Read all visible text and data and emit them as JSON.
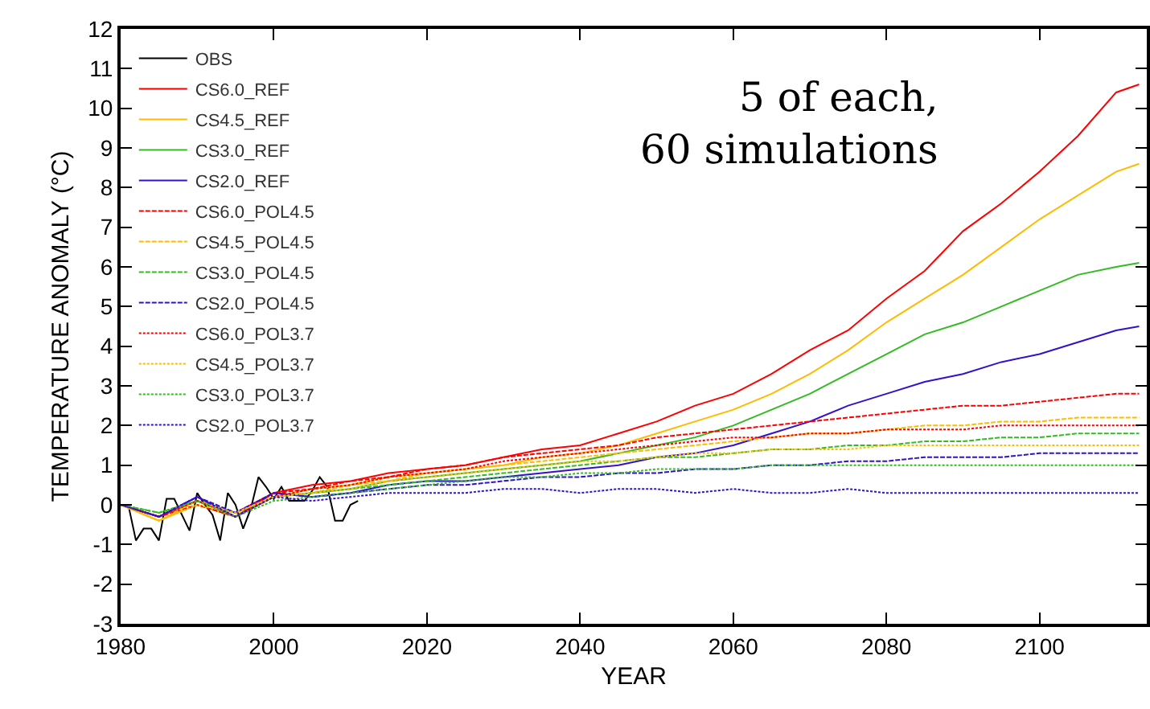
{
  "chart_data": {
    "type": "line",
    "xlabel": "YEAR",
    "ylabel": "TEMPERATURE ANOMALY (°C)",
    "xlim": [
      1980,
      2114
    ],
    "xticks": [
      1980,
      2000,
      2020,
      2040,
      2060,
      2080,
      2100
    ],
    "ylim": [
      -3,
      12
    ],
    "yticks": [
      -3,
      -2,
      -1,
      0,
      1,
      2,
      3,
      4,
      5,
      6,
      7,
      8,
      9,
      10,
      11,
      12
    ],
    "grid": false,
    "legend": "top left",
    "annotations": [
      "5 of each,\n60 simulations"
    ],
    "x": [
      1980,
      1985,
      1990,
      1995,
      2000,
      2005,
      2010,
      2015,
      2020,
      2025,
      2030,
      2035,
      2040,
      2045,
      2050,
      2055,
      2060,
      2065,
      2070,
      2075,
      2080,
      2085,
      2090,
      2095,
      2100,
      2105,
      2110,
      2113
    ],
    "series": [
      {
        "name": "OBS",
        "color": "#000000",
        "line_style": "solid",
        "x": [
          1980,
          1981,
          1982,
          1983,
          1984,
          1985,
          1986,
          1987,
          1988,
          1989,
          1990,
          1991,
          1992,
          1993,
          1994,
          1995,
          1996,
          1997,
          1998,
          1999,
          2000,
          2001,
          2002,
          2003,
          2004,
          2005,
          2006,
          2007,
          2008,
          2009,
          2010,
          2011
        ],
        "values": [
          0,
          0,
          -0.9,
          -0.6,
          -0.6,
          -0.9,
          0.15,
          0.15,
          -0.25,
          -0.65,
          0.3,
          0,
          -0.25,
          -0.9,
          0.3,
          0,
          -0.6,
          -0.1,
          0.7,
          0.45,
          0.15,
          0.45,
          0.1,
          0.1,
          0.1,
          0.35,
          0.7,
          0.45,
          -0.4,
          -0.4,
          0,
          0.1
        ]
      },
      {
        "name": "CS6.0_REF",
        "color": "#ff0000",
        "line_style": "solid",
        "values": [
          0,
          -0.3,
          0.1,
          -0.2,
          0.3,
          0.5,
          0.6,
          0.8,
          0.9,
          1.0,
          1.2,
          1.4,
          1.5,
          1.8,
          2.1,
          2.5,
          2.8,
          3.3,
          3.9,
          4.4,
          5.2,
          5.9,
          6.9,
          7.6,
          8.4,
          9.3,
          10.4,
          10.6
        ]
      },
      {
        "name": "CS4.5_REF",
        "color": "#ffbb00",
        "line_style": "solid",
        "values": [
          0,
          -0.4,
          0,
          -0.3,
          0.2,
          0.4,
          0.5,
          0.7,
          0.8,
          0.9,
          1.0,
          1.2,
          1.3,
          1.5,
          1.8,
          2.1,
          2.4,
          2.8,
          3.3,
          3.9,
          4.6,
          5.2,
          5.8,
          6.5,
          7.2,
          7.8,
          8.4,
          8.6
        ]
      },
      {
        "name": "CS3.0_REF",
        "color": "#33bb22",
        "line_style": "solid",
        "values": [
          0,
          -0.3,
          0.1,
          -0.2,
          0.2,
          0.3,
          0.4,
          0.6,
          0.7,
          0.8,
          0.9,
          1.0,
          1.1,
          1.3,
          1.5,
          1.7,
          2.0,
          2.4,
          2.8,
          3.3,
          3.8,
          4.3,
          4.6,
          5.0,
          5.4,
          5.8,
          6.0,
          6.1
        ]
      },
      {
        "name": "CS2.0_REF",
        "color": "#3311cc",
        "line_style": "solid",
        "values": [
          0,
          -0.3,
          0.2,
          -0.3,
          0.3,
          0.2,
          0.3,
          0.5,
          0.6,
          0.6,
          0.7,
          0.8,
          0.9,
          1.0,
          1.2,
          1.3,
          1.5,
          1.8,
          2.1,
          2.5,
          2.8,
          3.1,
          3.3,
          3.6,
          3.8,
          4.1,
          4.4,
          4.5
        ]
      },
      {
        "name": "CS6.0_POL4.5",
        "color": "#ff0000",
        "line_style": "dashed",
        "values": [
          0,
          -0.3,
          0,
          -0.3,
          0.3,
          0.4,
          0.6,
          0.7,
          0.9,
          1.0,
          1.2,
          1.3,
          1.4,
          1.5,
          1.7,
          1.8,
          1.9,
          2.0,
          2.1,
          2.2,
          2.3,
          2.4,
          2.5,
          2.5,
          2.6,
          2.7,
          2.8,
          2.8
        ]
      },
      {
        "name": "CS4.5_POL4.5",
        "color": "#ffbb00",
        "line_style": "dashed",
        "values": [
          0,
          -0.4,
          0.1,
          -0.2,
          0.2,
          0.3,
          0.5,
          0.6,
          0.8,
          0.9,
          1.0,
          1.1,
          1.2,
          1.3,
          1.4,
          1.5,
          1.6,
          1.7,
          1.8,
          1.8,
          1.9,
          2.0,
          2.0,
          2.1,
          2.1,
          2.2,
          2.2,
          2.2
        ]
      },
      {
        "name": "CS3.0_POL4.5",
        "color": "#33bb22",
        "line_style": "dashed",
        "values": [
          0,
          -0.2,
          0.1,
          -0.3,
          0.2,
          0.3,
          0.4,
          0.5,
          0.6,
          0.7,
          0.8,
          0.9,
          1.0,
          1.1,
          1.2,
          1.2,
          1.3,
          1.4,
          1.4,
          1.5,
          1.5,
          1.6,
          1.6,
          1.7,
          1.7,
          1.8,
          1.8,
          1.8
        ]
      },
      {
        "name": "CS2.0_POL4.5",
        "color": "#3311cc",
        "line_style": "dashed",
        "values": [
          0,
          -0.3,
          0.2,
          -0.2,
          0.3,
          0.2,
          0.3,
          0.4,
          0.5,
          0.5,
          0.6,
          0.7,
          0.7,
          0.8,
          0.8,
          0.9,
          0.9,
          1.0,
          1.0,
          1.1,
          1.1,
          1.2,
          1.2,
          1.2,
          1.3,
          1.3,
          1.3,
          1.3
        ]
      },
      {
        "name": "CS6.0_POL3.7",
        "color": "#ff0000",
        "line_style": "dotted",
        "values": [
          0,
          -0.3,
          0.1,
          -0.3,
          0.2,
          0.4,
          0.5,
          0.7,
          0.8,
          0.9,
          1.1,
          1.2,
          1.3,
          1.4,
          1.5,
          1.6,
          1.7,
          1.7,
          1.8,
          1.8,
          1.9,
          1.9,
          1.9,
          2.0,
          2.0,
          2.0,
          2.0,
          2.0
        ]
      },
      {
        "name": "CS4.5_POL3.7",
        "color": "#ffbb00",
        "line_style": "dotted",
        "values": [
          0,
          -0.4,
          0,
          -0.2,
          0.2,
          0.3,
          0.4,
          0.6,
          0.7,
          0.8,
          0.9,
          1.0,
          1.1,
          1.1,
          1.2,
          1.3,
          1.3,
          1.4,
          1.4,
          1.4,
          1.5,
          1.5,
          1.5,
          1.5,
          1.5,
          1.5,
          1.5,
          1.5
        ]
      },
      {
        "name": "CS3.0_POL3.7",
        "color": "#33bb22",
        "line_style": "dotted",
        "values": [
          0,
          -0.2,
          0.1,
          -0.3,
          0.1,
          0.2,
          0.3,
          0.4,
          0.5,
          0.6,
          0.7,
          0.7,
          0.8,
          0.8,
          0.9,
          0.9,
          0.9,
          1.0,
          1.0,
          1.0,
          1.0,
          1.0,
          1.0,
          1.0,
          1.0,
          1.0,
          1.0,
          1.0
        ]
      },
      {
        "name": "CS2.0_POL3.7",
        "color": "#3311cc",
        "line_style": "dotted",
        "values": [
          0,
          -0.3,
          0.2,
          -0.3,
          0.2,
          0.1,
          0.2,
          0.3,
          0.3,
          0.3,
          0.4,
          0.4,
          0.3,
          0.4,
          0.4,
          0.3,
          0.4,
          0.3,
          0.3,
          0.4,
          0.3,
          0.3,
          0.3,
          0.3,
          0.3,
          0.3,
          0.3,
          0.3
        ]
      }
    ]
  }
}
